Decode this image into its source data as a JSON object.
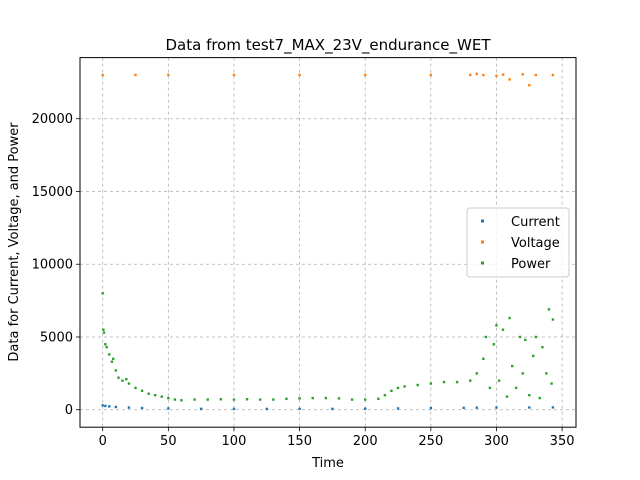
{
  "chart_data": {
    "type": "scatter",
    "title": "Data from test7_MAX_23V_endurance_WET",
    "xlabel": "Time",
    "ylabel": "Data for Current, Voltage, and Power",
    "xlim": [
      -17.3,
      360.6
    ],
    "ylim": [
      -1200,
      24200
    ],
    "xticks": [
      0,
      50,
      100,
      150,
      200,
      250,
      300,
      350
    ],
    "yticks": [
      0,
      5000,
      10000,
      15000,
      20000
    ],
    "grid": true,
    "grid_style": "dashed",
    "legend_position": "center-right",
    "series": [
      {
        "name": "Current",
        "color": "#1f77b4",
        "points": [
          [
            0,
            300
          ],
          [
            2,
            260
          ],
          [
            5,
            230
          ],
          [
            10,
            190
          ],
          [
            20,
            150
          ],
          [
            30,
            120
          ],
          [
            50,
            90
          ],
          [
            75,
            60
          ],
          [
            100,
            55
          ],
          [
            125,
            55
          ],
          [
            150,
            60
          ],
          [
            175,
            60
          ],
          [
            200,
            70
          ],
          [
            225,
            90
          ],
          [
            250,
            110
          ],
          [
            275,
            130
          ],
          [
            285,
            140
          ],
          [
            300,
            150
          ],
          [
            325,
            155
          ],
          [
            343,
            160
          ]
        ]
      },
      {
        "name": "Voltage",
        "color": "#ff7f0e",
        "points": [
          [
            0,
            23000
          ],
          [
            25,
            23010
          ],
          [
            50,
            23010
          ],
          [
            100,
            23010
          ],
          [
            150,
            23010
          ],
          [
            200,
            23010
          ],
          [
            250,
            23010
          ],
          [
            280,
            23010
          ],
          [
            285,
            23080
          ],
          [
            290,
            23000
          ],
          [
            300,
            22950
          ],
          [
            305,
            23030
          ],
          [
            310,
            22700
          ],
          [
            320,
            23050
          ],
          [
            325,
            22300
          ],
          [
            330,
            23000
          ],
          [
            343,
            23000
          ]
        ]
      },
      {
        "name": "Power",
        "color": "#2ca02c",
        "points": [
          [
            0,
            8000
          ],
          [
            0.5,
            5500
          ],
          [
            1,
            5300
          ],
          [
            2,
            4500
          ],
          [
            3,
            4300
          ],
          [
            5,
            3800
          ],
          [
            7,
            3300
          ],
          [
            8,
            3500
          ],
          [
            10,
            2700
          ],
          [
            12,
            2200
          ],
          [
            15,
            2000
          ],
          [
            18,
            2100
          ],
          [
            20,
            1800
          ],
          [
            25,
            1500
          ],
          [
            30,
            1300
          ],
          [
            35,
            1100
          ],
          [
            40,
            1000
          ],
          [
            45,
            900
          ],
          [
            50,
            800
          ],
          [
            55,
            700
          ],
          [
            60,
            650
          ],
          [
            70,
            700
          ],
          [
            80,
            700
          ],
          [
            90,
            720
          ],
          [
            100,
            700
          ],
          [
            110,
            720
          ],
          [
            120,
            700
          ],
          [
            130,
            700
          ],
          [
            140,
            750
          ],
          [
            150,
            780
          ],
          [
            160,
            800
          ],
          [
            170,
            800
          ],
          [
            180,
            780
          ],
          [
            190,
            700
          ],
          [
            200,
            700
          ],
          [
            210,
            750
          ],
          [
            215,
            1000
          ],
          [
            220,
            1300
          ],
          [
            225,
            1500
          ],
          [
            230,
            1600
          ],
          [
            240,
            1700
          ],
          [
            250,
            1800
          ],
          [
            260,
            1900
          ],
          [
            270,
            1900
          ],
          [
            280,
            2000
          ],
          [
            285,
            2500
          ],
          [
            290,
            3500
          ],
          [
            292,
            5000
          ],
          [
            295,
            1500
          ],
          [
            298,
            4500
          ],
          [
            300,
            5800
          ],
          [
            302,
            2000
          ],
          [
            305,
            5500
          ],
          [
            308,
            900
          ],
          [
            310,
            6300
          ],
          [
            312,
            3000
          ],
          [
            315,
            1500
          ],
          [
            318,
            5000
          ],
          [
            320,
            2500
          ],
          [
            322,
            4800
          ],
          [
            325,
            1000
          ],
          [
            328,
            3700
          ],
          [
            330,
            5000
          ],
          [
            333,
            800
          ],
          [
            335,
            4300
          ],
          [
            338,
            2500
          ],
          [
            340,
            6900
          ],
          [
            342,
            1800
          ],
          [
            343,
            6200
          ]
        ]
      }
    ]
  }
}
